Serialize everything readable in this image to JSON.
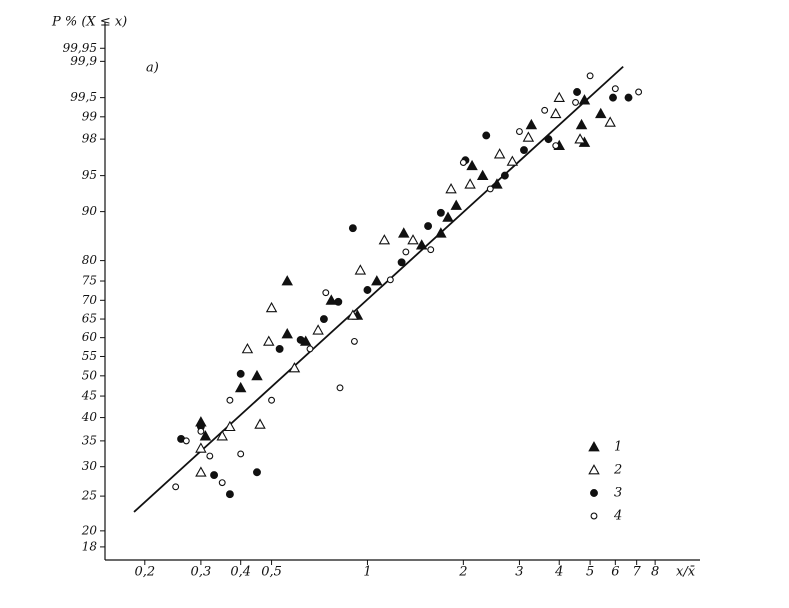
{
  "chart_data": {
    "type": "scatter",
    "y_axis_label": "P % (X ≤ x)",
    "x_axis_label": "x/x̄",
    "panel_label": "а)",
    "xscale": "log",
    "yscale": "weibull",
    "xlim": [
      0.15,
      10
    ],
    "ylim": [
      16.5,
      99.99
    ],
    "xticks": [
      {
        "value": 0.2,
        "label": "0,2"
      },
      {
        "value": 0.3,
        "label": "0,3"
      },
      {
        "value": 0.4,
        "label": "0,4"
      },
      {
        "value": 0.5,
        "label": "0,5"
      },
      1,
      2,
      3,
      4,
      5,
      6,
      7,
      8
    ],
    "yticks": [
      18,
      20,
      25,
      30,
      35,
      40,
      45,
      50,
      55,
      60,
      65,
      70,
      75,
      80,
      90,
      95,
      98,
      99,
      {
        "value": 99.5,
        "label": "99,5"
      },
      {
        "value": 99.9,
        "label": "99,9"
      },
      {
        "value": 99.95,
        "label": "99,95"
      }
    ],
    "fit": {
      "color": "#111111",
      "x": [
        0.185,
        6.35
      ],
      "values": [
        22.6,
        99.87
      ]
    },
    "series": [
      {
        "name": "1",
        "marker": "triangle-filled",
        "color": "#111111",
        "x": [
          0.3,
          0.31,
          0.4,
          0.45,
          0.56,
          0.56,
          0.64,
          0.77,
          0.93,
          1.07,
          1.3,
          1.48,
          1.79,
          1.9,
          2.3,
          2.55,
          3.27,
          4.0,
          4.8,
          4.8,
          5.4,
          4.7,
          1.7,
          2.13
        ],
        "values": [
          39,
          36,
          47,
          50,
          75,
          61,
          59,
          70,
          66,
          75,
          86,
          83.5,
          89,
          91,
          95,
          94,
          98.7,
          97.6,
          97.8,
          99.45,
          99.1,
          98.7,
          86,
          96
        ]
      },
      {
        "name": "2",
        "marker": "triangle-open",
        "color": "#111111",
        "x": [
          0.3,
          0.3,
          0.35,
          0.42,
          0.5,
          0.49,
          0.59,
          0.7,
          0.9,
          1.13,
          0.95,
          1.39,
          1.83,
          2.1,
          2.6,
          3.2,
          3.9,
          4.0,
          2.85,
          4.65,
          5.78,
          0.37,
          0.46
        ],
        "values": [
          33.5,
          29,
          36,
          57,
          68,
          59,
          52,
          62,
          66,
          84.6,
          77.7,
          84.6,
          93.4,
          94,
          97,
          98.1,
          99.1,
          99.5,
          96.4,
          98,
          98.8,
          38,
          38.5
        ]
      },
      {
        "name": "3",
        "marker": "circle-filled",
        "color": "#111111",
        "x": [
          0.26,
          0.3,
          0.33,
          0.37,
          0.45,
          0.4,
          0.53,
          0.617,
          0.73,
          0.9,
          1.0,
          1.28,
          1.55,
          2.03,
          2.36,
          3.1,
          3.7,
          4.55,
          5.9,
          6.6,
          1.7,
          2.7,
          0.81
        ],
        "values": [
          35.4,
          38,
          28.5,
          25.3,
          29,
          50.5,
          57,
          59.4,
          65,
          87,
          72.7,
          79.6,
          87.4,
          96.5,
          98.2,
          97.3,
          98,
          99.6,
          99.5,
          99.5,
          89.8,
          95,
          69.6
        ]
      },
      {
        "name": "4",
        "marker": "circle-open",
        "color": "#111111",
        "x": [
          0.25,
          0.27,
          0.3,
          0.32,
          0.35,
          0.4,
          0.37,
          0.5,
          0.66,
          0.82,
          0.74,
          0.91,
          1.18,
          1.58,
          2.0,
          2.43,
          3.0,
          3.6,
          4.5,
          5.0,
          7.1,
          6.0,
          3.9,
          1.32
        ],
        "values": [
          26.5,
          35,
          37,
          32,
          27.2,
          32.4,
          44,
          44,
          57,
          47,
          72,
          59,
          75.3,
          82.5,
          96.3,
          93.4,
          98.4,
          99.2,
          99.4,
          99.8,
          99.6,
          99.65,
          97.6,
          82
        ]
      }
    ]
  }
}
